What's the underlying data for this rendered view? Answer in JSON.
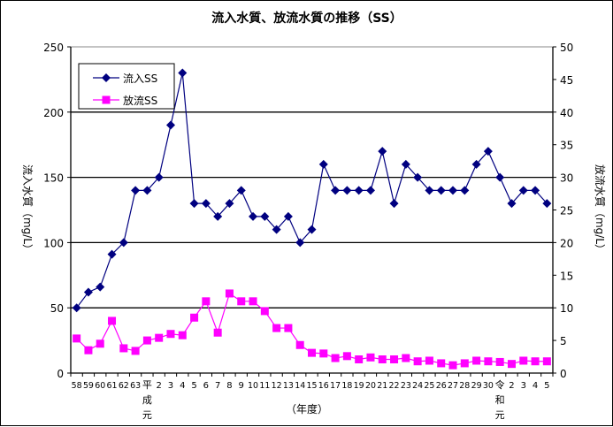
{
  "chart_data": {
    "type": "line",
    "title": "流入水質、放流水質の推移（SS）",
    "xlabel": "（年度）",
    "ylabel_left": "流入水質（mg/L）",
    "ylabel_right": "放流水質（mg/L）",
    "ylim_left": [
      0,
      250
    ],
    "ylim_right": [
      0,
      50
    ],
    "yticks_left": [
      "0",
      "50",
      "100",
      "150",
      "200",
      "250"
    ],
    "yticks_right": [
      "0",
      "5",
      "10",
      "15",
      "20",
      "25",
      "30",
      "35",
      "40",
      "45",
      "50"
    ],
    "grid": true,
    "legend": "top-left",
    "categories": [
      "58",
      "59",
      "60",
      "61",
      "62",
      "63",
      "平成元",
      "2",
      "3",
      "4",
      "5",
      "6",
      "7",
      "8",
      "9",
      "10",
      "11",
      "12",
      "13",
      "14",
      "15",
      "16",
      "17",
      "18",
      "19",
      "20",
      "21",
      "22",
      "23",
      "24",
      "25",
      "26",
      "27",
      "28",
      "29",
      "30",
      "令和元",
      "2",
      "3",
      "4",
      "5"
    ],
    "series": [
      {
        "name": "流入SS",
        "axis": "left",
        "color": "#000080",
        "marker": "diamond",
        "values": [
          50,
          62,
          66,
          91,
          100,
          140,
          140,
          150,
          190,
          230,
          130,
          130,
          120,
          130,
          140,
          120,
          120,
          110,
          120,
          100,
          110,
          160,
          140,
          140,
          140,
          140,
          170,
          130,
          160,
          150,
          140,
          140,
          140,
          140,
          160,
          170,
          150,
          130,
          140,
          140,
          130
        ]
      },
      {
        "name": "放流SS",
        "axis": "right",
        "color": "#FF00FF",
        "marker": "square",
        "values": [
          5.3,
          3.5,
          4.5,
          8,
          3.8,
          3.4,
          5,
          5.4,
          6,
          5.8,
          8.5,
          11,
          6.2,
          12.2,
          11,
          11,
          9.5,
          6.9,
          6.9,
          4.3,
          3.1,
          3,
          2.3,
          2.6,
          2.1,
          2.4,
          2.1,
          2.1,
          2.3,
          1.8,
          1.9,
          1.5,
          1.2,
          1.5,
          1.9,
          1.8,
          1.7,
          1.4,
          1.9,
          1.8,
          1.8
        ]
      }
    ]
  }
}
